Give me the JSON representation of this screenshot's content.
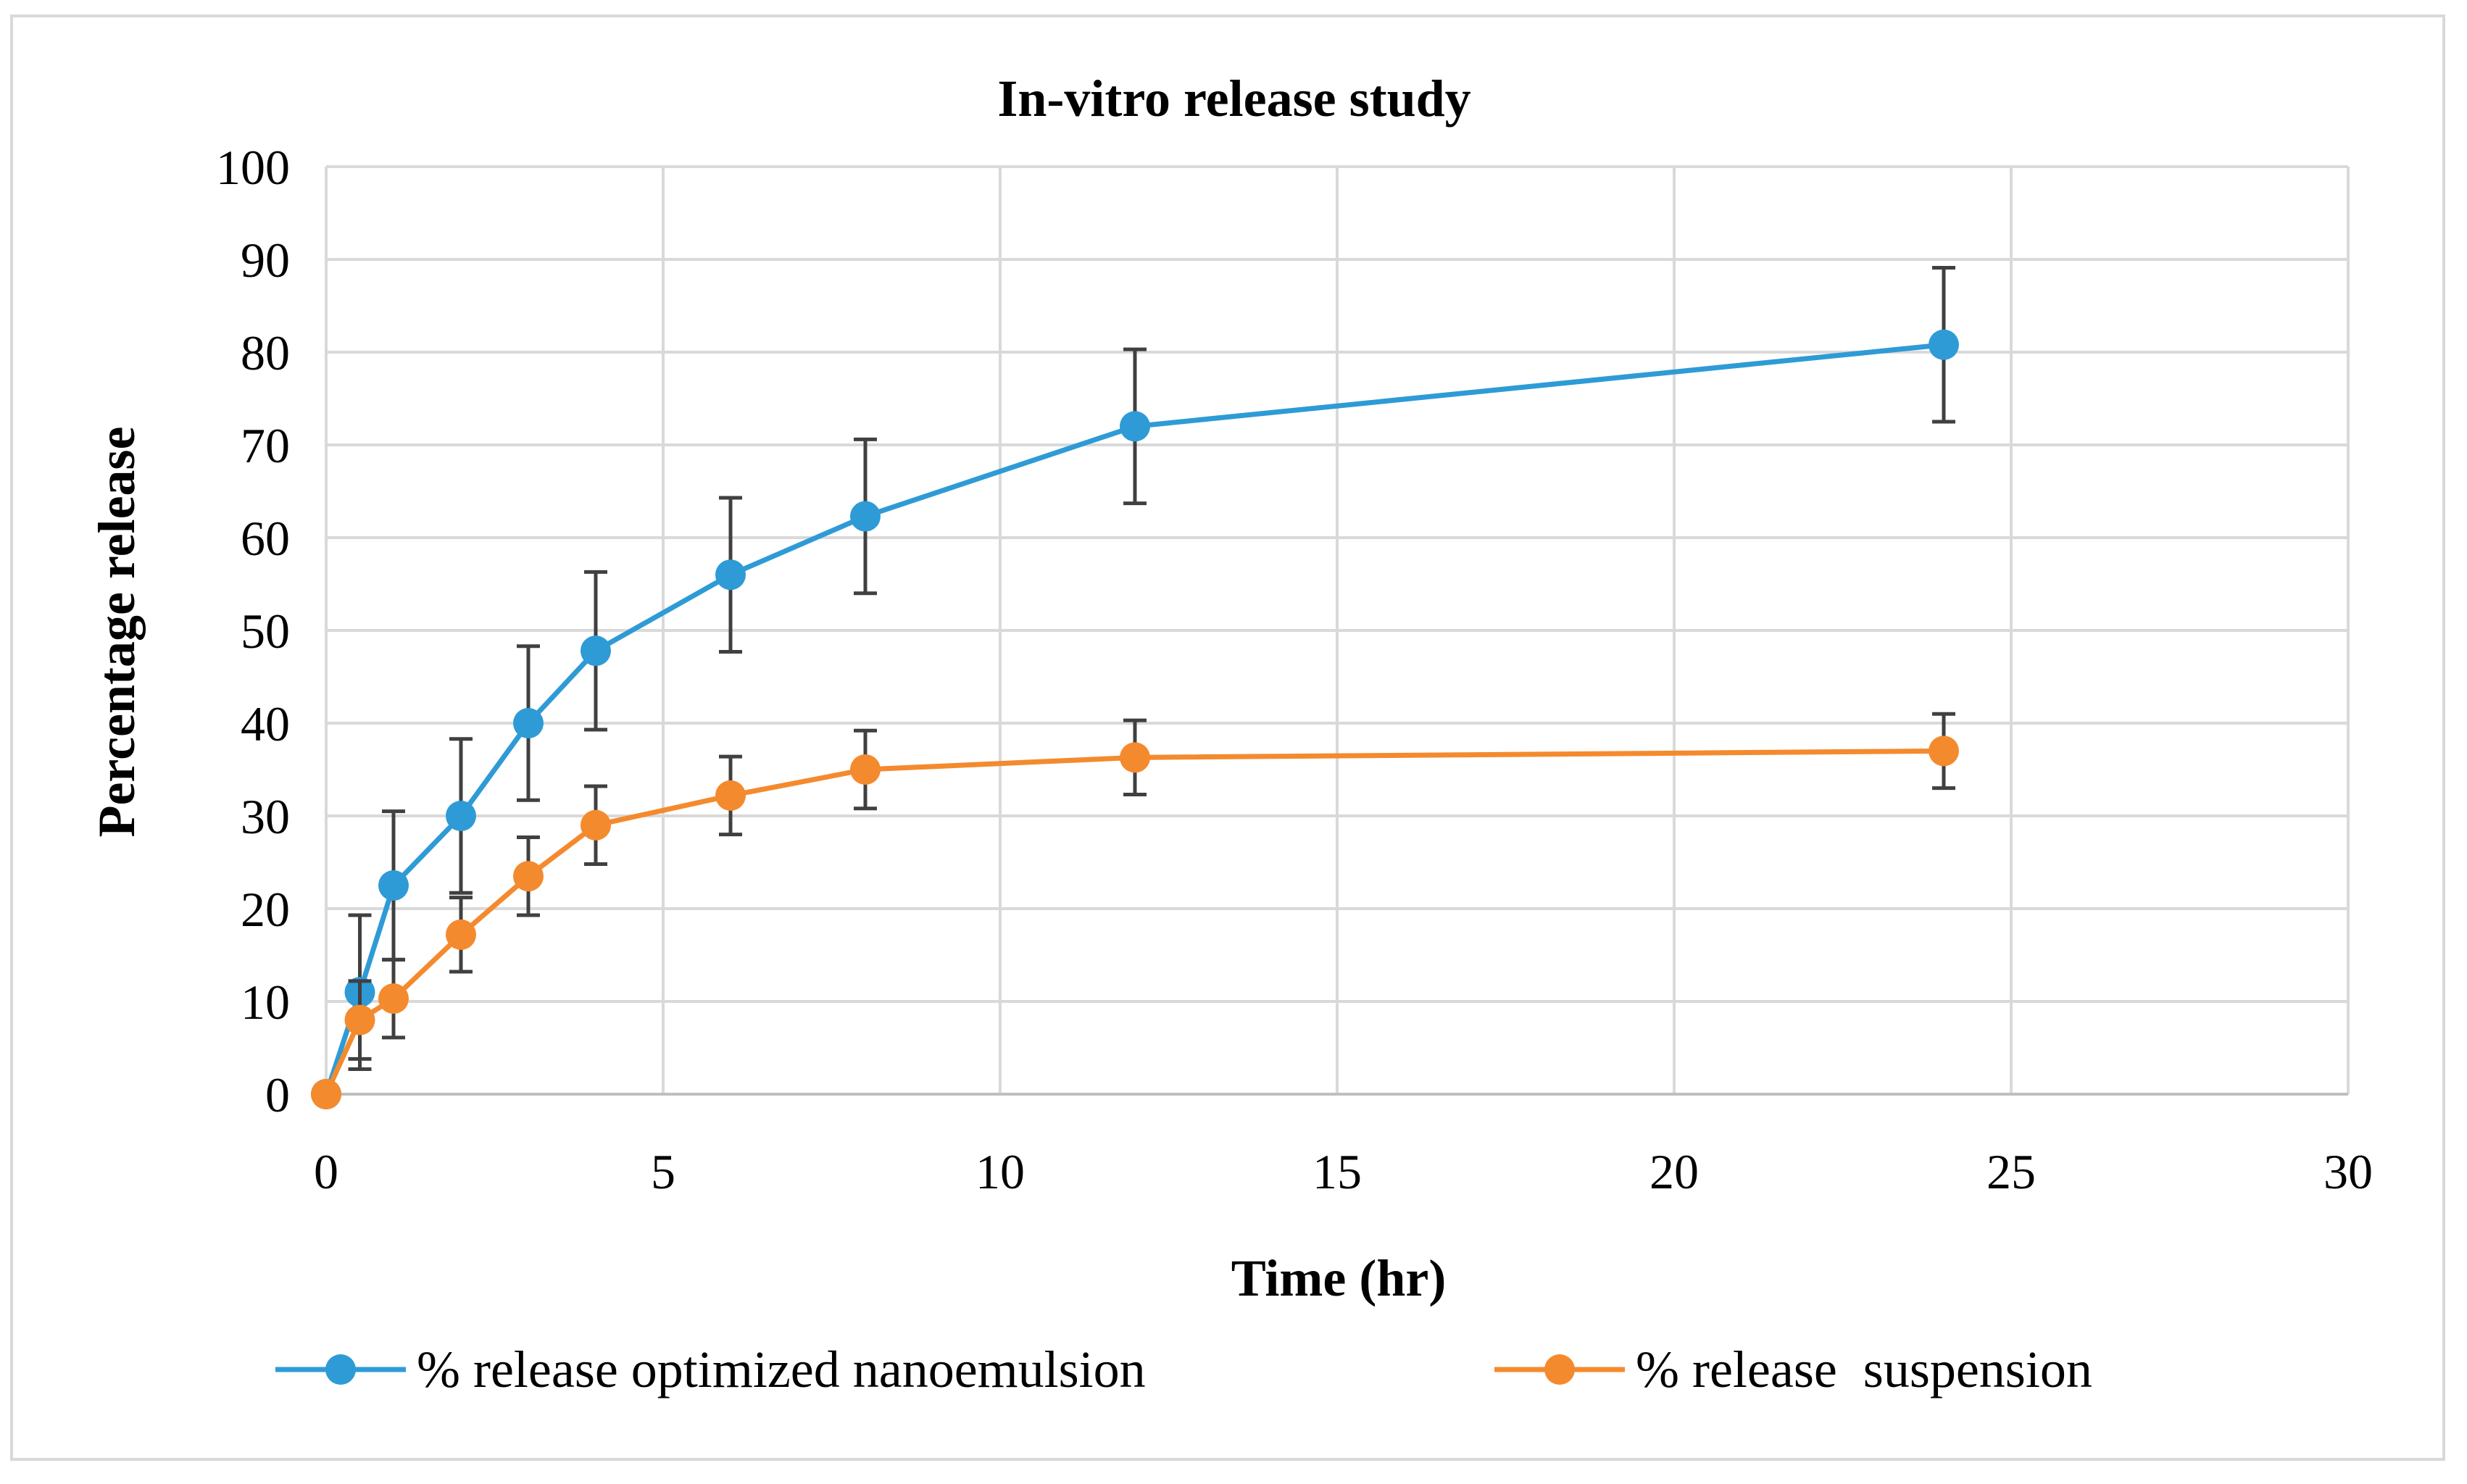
{
  "chart_data": {
    "type": "line",
    "title": "In-vitro release study",
    "xlabel": "Time (hr)",
    "ylabel": "Percentage release",
    "xlim": [
      0,
      30
    ],
    "ylim": [
      0,
      100
    ],
    "x_ticks": [
      0,
      5,
      10,
      15,
      20,
      25,
      30
    ],
    "y_ticks": [
      0,
      10,
      20,
      30,
      40,
      50,
      60,
      70,
      80,
      90,
      100
    ],
    "grid": true,
    "legend_position": "bottom",
    "error_bars": true,
    "series": [
      {
        "name": "% release optimized nanoemulsion",
        "color": "#2e9bd6",
        "x": [
          0,
          0.5,
          1,
          2,
          3,
          4,
          6,
          8,
          12,
          24
        ],
        "y": [
          0,
          11,
          22.5,
          30,
          40,
          47.8,
          56,
          62.3,
          72,
          80.8
        ],
        "error": [
          0,
          8.3,
          8,
          8.3,
          8.3,
          8.5,
          8.3,
          8.3,
          8.3,
          8.3
        ]
      },
      {
        "name": "% release  suspension",
        "color": "#f48a2e",
        "x": [
          0,
          0.5,
          1,
          2,
          3,
          4,
          6,
          8,
          12,
          24
        ],
        "y": [
          0,
          8,
          10.3,
          17.2,
          23.5,
          29,
          32.2,
          35,
          36.3,
          37
        ],
        "error": [
          0,
          4.2,
          4.2,
          4,
          4.2,
          4.2,
          4.2,
          4.2,
          4,
          4
        ]
      }
    ]
  }
}
